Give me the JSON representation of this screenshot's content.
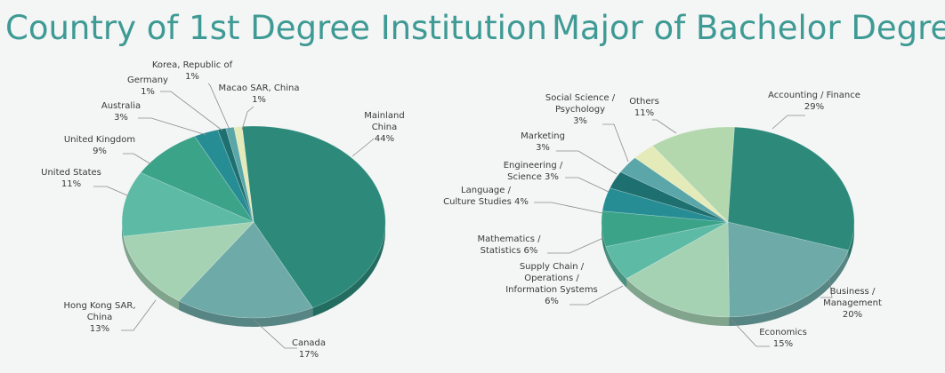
{
  "chart_data": [
    {
      "type": "pie",
      "title": "Country of 1st Degree Institution",
      "slices": [
        {
          "label": "Mainland China",
          "label_lines": [
            "Mainland",
            "China"
          ],
          "pct_text": "44%",
          "value": 44,
          "color": "#2d8a7b"
        },
        {
          "label": "Canada",
          "label_lines": [
            "Canada"
          ],
          "pct_text": "17%",
          "value": 17,
          "color": "#6eaaa8"
        },
        {
          "label": "Hong Kong SAR, China",
          "label_lines": [
            "Hong Kong SAR,",
            "China"
          ],
          "pct_text": "13%",
          "value": 13,
          "color": "#a6d2b4"
        },
        {
          "label": "United States",
          "label_lines": [
            "United States"
          ],
          "pct_text": "11%",
          "value": 11,
          "color": "#5dbaa5"
        },
        {
          "label": "United Kingdom",
          "label_lines": [
            "United Kingdom"
          ],
          "pct_text": "9%",
          "value": 9,
          "color": "#3aa388"
        },
        {
          "label": "Australia",
          "label_lines": [
            "Australia"
          ],
          "pct_text": "3%",
          "value": 3,
          "color": "#268d94"
        },
        {
          "label": "Germany",
          "label_lines": [
            "Germany"
          ],
          "pct_text": "1%",
          "value": 1,
          "color": "#1e6f6f"
        },
        {
          "label": "Korea, Republic of",
          "label_lines": [
            "Korea, Republic of"
          ],
          "pct_text": "1%",
          "value": 1,
          "color": "#5aa6a8"
        },
        {
          "label": "Macao SAR, China",
          "label_lines": [
            "Macao SAR, China"
          ],
          "pct_text": "1%",
          "value": 1,
          "color": "#e4ebb8"
        }
      ]
    },
    {
      "type": "pie",
      "title": "Major of Bachelor Degree",
      "slices": [
        {
          "label": "Accounting / Finance",
          "label_lines": [
            "Accounting / Finance"
          ],
          "pct_text": "29%",
          "value": 29,
          "color": "#2d8a7b"
        },
        {
          "label": "Business / Management",
          "label_lines": [
            "Business /",
            "Management"
          ],
          "pct_text": "20%",
          "value": 20,
          "color": "#6eaaa8"
        },
        {
          "label": "Economics",
          "label_lines": [
            "Economics"
          ],
          "pct_text": "15%",
          "value": 15,
          "color": "#a6d2b4"
        },
        {
          "label": "Supply Chain / Operations / Information Systems",
          "label_lines": [
            "Supply Chain /",
            "Operations /",
            "Information Systems"
          ],
          "pct_text": "6%",
          "value": 6,
          "color": "#5dbaa5"
        },
        {
          "label": "Mathematics / Statistics",
          "label_lines": [
            "Mathematics /",
            "Statistics  6%"
          ],
          "pct_text": "",
          "value": 6,
          "color": "#3aa388"
        },
        {
          "label": "Language / Culture Studies",
          "label_lines": [
            "Language /",
            "Culture Studies 4%"
          ],
          "pct_text": "",
          "value": 4,
          "color": "#268d94"
        },
        {
          "label": "Engineering / Science",
          "label_lines": [
            "Engineering /",
            "Science 3%"
          ],
          "pct_text": "",
          "value": 3,
          "color": "#1e6f6f"
        },
        {
          "label": "Marketing",
          "label_lines": [
            "Marketing"
          ],
          "pct_text": "3%",
          "value": 3,
          "color": "#5aa6a8"
        },
        {
          "label": "Social Science / Psychology",
          "label_lines": [
            "Social Science /",
            "Psychology"
          ],
          "pct_text": "3%",
          "value": 3,
          "color": "#e4ebb8"
        },
        {
          "label": "Others",
          "label_lines": [
            "Others"
          ],
          "pct_text": "11%",
          "value": 11,
          "color": "#b4d8ae"
        }
      ]
    }
  ]
}
